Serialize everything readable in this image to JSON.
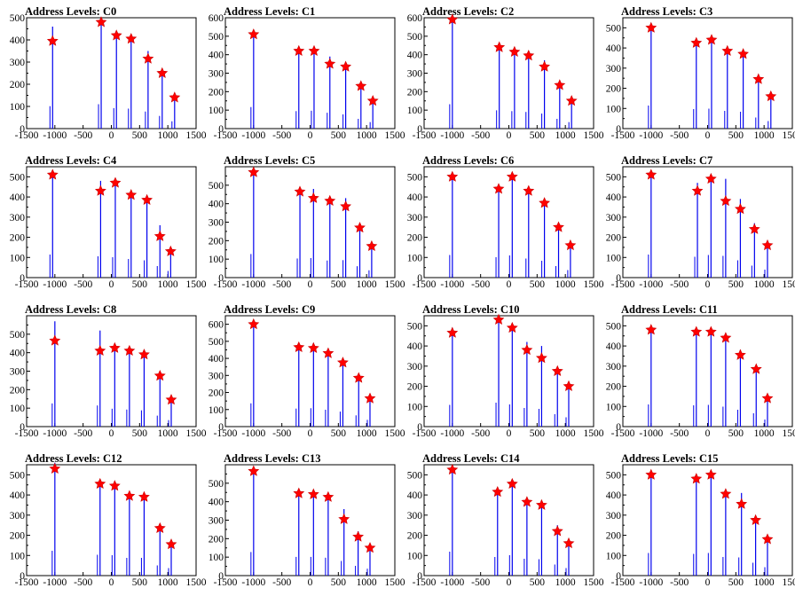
{
  "chart_data": [
    {
      "type": "bar",
      "title": "Address Levels: C0",
      "xlim": [
        -1500,
        1500
      ],
      "ylim": [
        0,
        500
      ],
      "yticks": [
        0,
        100,
        200,
        300,
        400,
        500
      ],
      "xticks": [
        -1500,
        -1000,
        -500,
        0,
        500,
        1000,
        1500
      ],
      "x": [
        -1040,
        -180,
        90,
        350,
        650,
        900,
        1120
      ],
      "spike": [
        460,
        500,
        420,
        410,
        350,
        260,
        150
      ],
      "peak": [
        395,
        480,
        420,
        405,
        315,
        250,
        140
      ]
    },
    {
      "type": "bar",
      "title": "Address Levels: C1",
      "xlim": [
        -1500,
        1500
      ],
      "ylim": [
        0,
        600
      ],
      "yticks": [
        0,
        100,
        200,
        300,
        400,
        500,
        600
      ],
      "xticks": [
        -1500,
        -1000,
        -500,
        0,
        500,
        1000,
        1500
      ],
      "x": [
        -1000,
        -200,
        70,
        350,
        630,
        900,
        1110
      ],
      "spike": [
        530,
        430,
        440,
        390,
        350,
        240,
        160
      ],
      "peak": [
        510,
        420,
        420,
        350,
        335,
        230,
        150
      ]
    },
    {
      "type": "bar",
      "title": "Address Levels: C2",
      "xlim": [
        -1500,
        1500
      ],
      "ylim": [
        0,
        600
      ],
      "yticks": [
        0,
        100,
        200,
        300,
        400,
        500,
        600
      ],
      "xticks": [
        -1500,
        -1000,
        -500,
        0,
        500,
        1000,
        1500
      ],
      "x": [
        -1000,
        -170,
        100,
        350,
        630,
        900,
        1110
      ],
      "spike": [
        600,
        450,
        430,
        410,
        370,
        240,
        160
      ],
      "peak": [
        590,
        440,
        415,
        395,
        335,
        235,
        150
      ]
    },
    {
      "type": "bar",
      "title": "Address Levels: C3",
      "xlim": [
        -1500,
        1500
      ],
      "ylim": [
        0,
        550
      ],
      "yticks": [
        0,
        100,
        200,
        300,
        400,
        500
      ],
      "xticks": [
        -1500,
        -1000,
        -500,
        0,
        500,
        1000,
        1500
      ],
      "x": [
        -1000,
        -200,
        70,
        350,
        630,
        900,
        1120
      ],
      "spike": [
        520,
        440,
        450,
        400,
        380,
        250,
        170
      ],
      "peak": [
        500,
        425,
        440,
        385,
        370,
        245,
        160
      ]
    },
    {
      "type": "bar",
      "title": "Address Levels: C4",
      "xlim": [
        -1500,
        1500
      ],
      "ylim": [
        0,
        550
      ],
      "yticks": [
        0,
        100,
        200,
        300,
        400,
        500
      ],
      "xticks": [
        -1500,
        -1000,
        -500,
        0,
        500,
        1000,
        1500
      ],
      "x": [
        -1040,
        -190,
        70,
        350,
        630,
        860,
        1050
      ],
      "spike": [
        520,
        480,
        460,
        420,
        390,
        260,
        150
      ],
      "peak": [
        510,
        430,
        470,
        410,
        385,
        205,
        130
      ]
    },
    {
      "type": "bar",
      "title": "Address Levels: C5",
      "xlim": [
        -1500,
        1500
      ],
      "ylim": [
        0,
        600
      ],
      "yticks": [
        0,
        100,
        200,
        300,
        400,
        500
      ],
      "xticks": [
        -1500,
        -1000,
        -500,
        0,
        500,
        1000,
        1500
      ],
      "x": [
        -1000,
        -180,
        60,
        350,
        630,
        880,
        1090
      ],
      "spike": [
        580,
        470,
        480,
        420,
        430,
        280,
        180
      ],
      "peak": [
        570,
        465,
        430,
        415,
        385,
        270,
        170
      ]
    },
    {
      "type": "bar",
      "title": "Address Levels: C6",
      "xlim": [
        -1500,
        1500
      ],
      "ylim": [
        0,
        550
      ],
      "yticks": [
        0,
        100,
        200,
        300,
        400,
        500
      ],
      "xticks": [
        -1500,
        -1000,
        -500,
        0,
        500,
        1000,
        1500
      ],
      "x": [
        -1000,
        -180,
        60,
        350,
        630,
        880,
        1090
      ],
      "spike": [
        510,
        460,
        500,
        430,
        380,
        260,
        170
      ],
      "peak": [
        500,
        440,
        500,
        430,
        370,
        250,
        160
      ]
    },
    {
      "type": "bar",
      "title": "Address Levels: C7",
      "xlim": [
        -1500,
        1500
      ],
      "ylim": [
        0,
        550
      ],
      "yticks": [
        0,
        100,
        200,
        300,
        400,
        500
      ],
      "xticks": [
        -1500,
        -1000,
        -500,
        0,
        500,
        1000,
        1500
      ],
      "x": [
        -1000,
        -180,
        60,
        320,
        580,
        830,
        1060
      ],
      "spike": [
        520,
        470,
        510,
        490,
        390,
        270,
        180
      ],
      "peak": [
        510,
        430,
        490,
        380,
        340,
        240,
        160
      ]
    },
    {
      "type": "bar",
      "title": "Address Levels: C8",
      "xlim": [
        -1500,
        1500
      ],
      "ylim": [
        0,
        600
      ],
      "yticks": [
        0,
        100,
        200,
        300,
        400,
        500
      ],
      "xticks": [
        -1500,
        -1000,
        -500,
        0,
        500,
        1000,
        1500
      ],
      "x": [
        -1000,
        -200,
        60,
        320,
        580,
        860,
        1060
      ],
      "spike": [
        570,
        520,
        440,
        420,
        400,
        270,
        160
      ],
      "peak": [
        465,
        410,
        425,
        410,
        390,
        275,
        145
      ]
    },
    {
      "type": "bar",
      "title": "Address Levels: C9",
      "xlim": [
        -1500,
        1500
      ],
      "ylim": [
        0,
        650
      ],
      "yticks": [
        0,
        100,
        200,
        300,
        400,
        500,
        600
      ],
      "xticks": [
        -1500,
        -1000,
        -500,
        0,
        500,
        1000,
        1500
      ],
      "x": [
        -1000,
        -200,
        60,
        320,
        580,
        860,
        1060
      ],
      "spike": [
        620,
        480,
        490,
        450,
        400,
        300,
        180
      ],
      "peak": [
        600,
        465,
        460,
        430,
        375,
        285,
        165
      ]
    },
    {
      "type": "bar",
      "title": "Address Levels: C10",
      "xlim": [
        -1500,
        1500
      ],
      "ylim": [
        0,
        550
      ],
      "yticks": [
        0,
        100,
        200,
        300,
        400,
        500
      ],
      "xticks": [
        -1500,
        -1000,
        -500,
        0,
        500,
        1000,
        1500
      ],
      "x": [
        -1000,
        -180,
        60,
        320,
        580,
        860,
        1060
      ],
      "spike": [
        490,
        540,
        500,
        420,
        400,
        280,
        210
      ],
      "peak": [
        465,
        530,
        490,
        380,
        340,
        275,
        200
      ]
    },
    {
      "type": "bar",
      "title": "Address Levels: C11",
      "xlim": [
        -1500,
        1500
      ],
      "ylim": [
        0,
        550
      ],
      "yticks": [
        0,
        100,
        200,
        300,
        400,
        500
      ],
      "xticks": [
        -1500,
        -1000,
        -500,
        0,
        500,
        1000,
        1500
      ],
      "x": [
        -1000,
        -200,
        60,
        320,
        580,
        860,
        1060
      ],
      "spike": [
        500,
        480,
        490,
        450,
        380,
        300,
        160
      ],
      "peak": [
        480,
        470,
        470,
        440,
        355,
        285,
        140
      ]
    },
    {
      "type": "bar",
      "title": "Address Levels: C12",
      "xlim": [
        -1500,
        1500
      ],
      "ylim": [
        0,
        550
      ],
      "yticks": [
        0,
        100,
        200,
        300,
        400,
        500
      ],
      "xticks": [
        -1500,
        -1000,
        -500,
        0,
        500,
        1000,
        1500
      ],
      "x": [
        -1000,
        -200,
        60,
        320,
        580,
        860,
        1060
      ],
      "spike": [
        560,
        470,
        460,
        400,
        400,
        230,
        170
      ],
      "peak": [
        530,
        455,
        445,
        395,
        390,
        235,
        155
      ]
    },
    {
      "type": "bar",
      "title": "Address Levels: C13",
      "xlim": [
        -1500,
        1500
      ],
      "ylim": [
        0,
        600
      ],
      "yticks": [
        0,
        100,
        200,
        300,
        400,
        500
      ],
      "xticks": [
        -1500,
        -1000,
        -500,
        0,
        500,
        1000,
        1500
      ],
      "x": [
        -1000,
        -200,
        60,
        320,
        600,
        850,
        1060
      ],
      "spike": [
        580,
        460,
        460,
        440,
        360,
        240,
        170
      ],
      "peak": [
        565,
        445,
        440,
        425,
        305,
        210,
        150
      ]
    },
    {
      "type": "bar",
      "title": "Address Levels: C14",
      "xlim": [
        -1500,
        1500
      ],
      "ylim": [
        0,
        550
      ],
      "yticks": [
        0,
        100,
        200,
        300,
        400,
        500
      ],
      "xticks": [
        -1500,
        -1000,
        -500,
        0,
        500,
        1000,
        1500
      ],
      "x": [
        -1000,
        -200,
        60,
        320,
        580,
        860,
        1060
      ],
      "spike": [
        540,
        420,
        460,
        380,
        370,
        250,
        170
      ],
      "peak": [
        525,
        415,
        455,
        365,
        350,
        220,
        160
      ]
    },
    {
      "type": "bar",
      "title": "Address Levels: C15",
      "xlim": [
        -1500,
        1500
      ],
      "ylim": [
        0,
        550
      ],
      "yticks": [
        0,
        100,
        200,
        300,
        400,
        500
      ],
      "xticks": [
        -1500,
        -1000,
        -500,
        0,
        500,
        1000,
        1500
      ],
      "x": [
        -1000,
        -200,
        60,
        320,
        600,
        850,
        1060
      ],
      "spike": [
        510,
        490,
        510,
        420,
        410,
        290,
        190
      ],
      "peak": [
        500,
        480,
        500,
        405,
        355,
        275,
        180
      ]
    }
  ],
  "colors": {
    "bar": "#0000ee",
    "marker": "#ff0000",
    "marker_edge": "#cc0000",
    "axis": "#000000",
    "background": "#ffffff"
  }
}
